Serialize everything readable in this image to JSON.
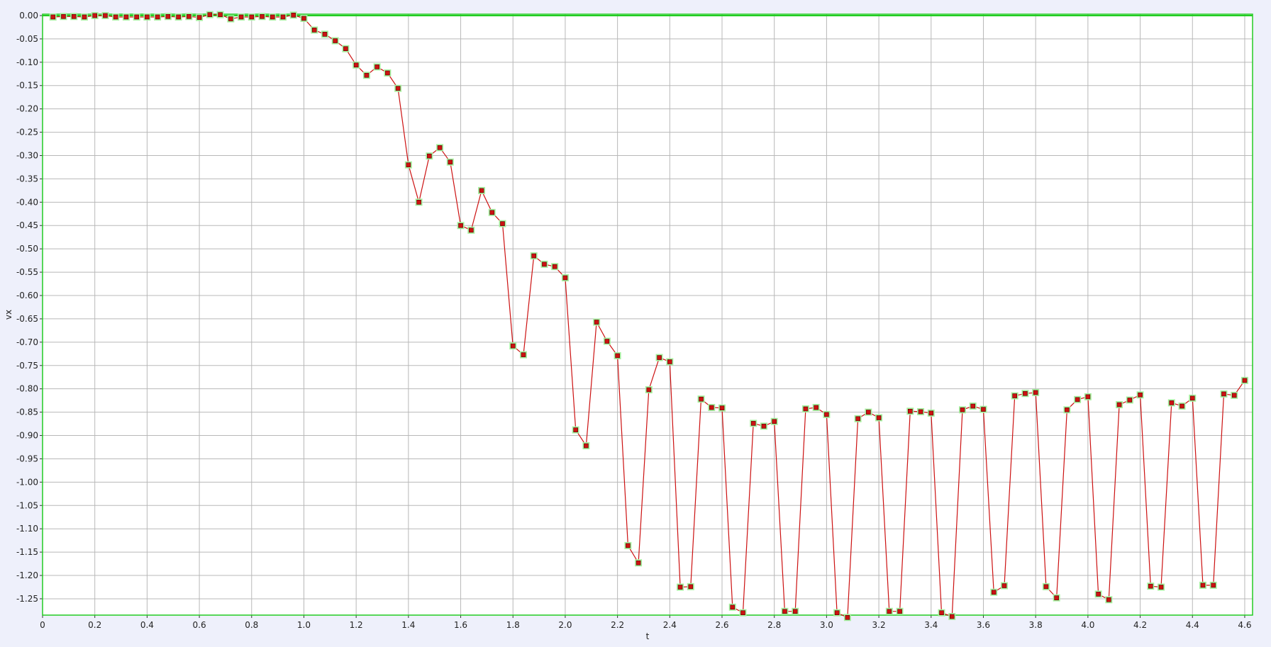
{
  "chart_data": {
    "type": "line",
    "title": "",
    "xlabel": "t",
    "ylabel": "vx",
    "xlim": [
      0,
      4.63
    ],
    "ylim": [
      -1.285,
      0.003
    ],
    "x_ticks": [
      "0",
      "0.2",
      "0.4",
      "0.6",
      "0.8",
      "1.0",
      "1.2",
      "1.4",
      "1.6",
      "1.8",
      "2.0",
      "2.2",
      "2.4",
      "2.6",
      "2.8",
      "3.0",
      "3.2",
      "3.4",
      "3.6",
      "3.8",
      "4.0",
      "4.2",
      "4.4",
      "4.6"
    ],
    "y_ticks": [
      "0.00",
      "-0.05",
      "-0.10",
      "-0.15",
      "-0.20",
      "-0.25",
      "-0.30",
      "-0.35",
      "-0.40",
      "-0.45",
      "-0.50",
      "-0.55",
      "-0.60",
      "-0.65",
      "-0.70",
      "-0.75",
      "-0.80",
      "-0.85",
      "-0.90",
      "-0.95",
      "-1.00",
      "-1.05",
      "-1.10",
      "-1.15",
      "-1.20",
      "-1.25"
    ],
    "grid": true,
    "colors": {
      "line": "#cc1111",
      "marker_fill": "#cc1111",
      "marker_halo": "#a8f0a0",
      "zero_line": "#22cc22",
      "grid": "#b8b8b8",
      "background": "#ffffff",
      "page": "#eef0fb"
    },
    "series": [
      {
        "x": [
          0.04,
          0.08,
          0.12,
          0.16,
          0.2,
          0.24,
          0.28,
          0.32,
          0.36,
          0.4,
          0.44,
          0.48,
          0.52,
          0.56,
          0.6,
          0.64,
          0.68,
          0.72,
          0.76,
          0.8,
          0.84,
          0.88,
          0.92,
          0.96,
          1.0,
          1.04,
          1.08,
          1.12,
          1.16,
          1.2,
          1.24,
          1.28,
          1.32,
          1.36,
          1.4,
          1.44,
          1.48,
          1.52,
          1.56,
          1.6,
          1.64,
          1.68,
          1.72,
          1.76,
          1.8,
          1.84,
          1.88,
          1.92,
          1.96,
          2.0,
          2.04,
          2.08,
          2.12,
          2.16,
          2.2,
          2.24,
          2.28,
          2.32,
          2.36,
          2.4,
          2.44,
          2.48,
          2.52,
          2.56,
          2.6,
          2.64,
          2.68,
          2.72,
          2.76,
          2.8,
          2.84,
          2.88,
          2.92,
          2.96,
          3.0,
          3.04,
          3.08,
          3.12,
          3.16,
          3.2,
          3.24,
          3.28,
          3.32,
          3.36,
          3.4,
          3.44,
          3.48,
          3.52,
          3.56,
          3.6,
          3.64,
          3.68,
          3.72,
          3.76,
          3.8,
          3.84,
          3.88,
          3.92,
          3.96,
          4.0,
          4.04,
          4.08,
          4.12,
          4.16,
          4.2,
          4.24,
          4.28,
          4.32,
          4.36,
          4.4,
          4.44,
          4.48,
          4.52,
          4.56,
          4.6
        ],
        "y": [
          -0.003,
          -0.002,
          -0.002,
          -0.003,
          0.0,
          0.0,
          -0.003,
          -0.003,
          -0.003,
          -0.003,
          -0.003,
          -0.002,
          -0.003,
          -0.002,
          -0.004,
          0.002,
          0.002,
          -0.007,
          -0.003,
          -0.003,
          -0.002,
          -0.003,
          -0.003,
          0.001,
          -0.006,
          -0.031,
          -0.04,
          -0.054,
          -0.071,
          -0.106,
          -0.128,
          -0.11,
          -0.123,
          -0.156,
          -0.32,
          -0.4,
          -0.301,
          -0.283,
          -0.314,
          -0.45,
          -0.46,
          -0.375,
          -0.422,
          -0.446,
          -0.708,
          -0.727,
          -0.515,
          -0.533,
          -0.538,
          -0.562,
          -0.888,
          -0.922,
          -0.657,
          -0.698,
          -0.729,
          -1.136,
          -1.173,
          -0.802,
          -0.733,
          -0.742,
          -1.225,
          -1.224,
          -0.822,
          -0.84,
          -0.841,
          -1.268,
          -1.28,
          -0.874,
          -0.88,
          -0.87,
          -1.277,
          -1.277,
          -0.843,
          -0.84,
          -0.855,
          -1.28,
          -1.29,
          -0.864,
          -0.85,
          -0.862,
          -1.277,
          -1.277,
          -0.848,
          -0.849,
          -0.852,
          -1.28,
          -1.288,
          -0.845,
          -0.837,
          -0.844,
          -1.236,
          -1.222,
          -0.815,
          -0.81,
          -0.808,
          -1.224,
          -1.248,
          -0.845,
          -0.823,
          -0.817,
          -1.24,
          -1.252,
          -0.834,
          -0.824,
          -0.813,
          -1.223,
          -1.225,
          -0.83,
          -0.837,
          -0.82,
          -1.221,
          -1.221,
          -0.811,
          -0.814,
          -0.782
        ]
      }
    ]
  }
}
